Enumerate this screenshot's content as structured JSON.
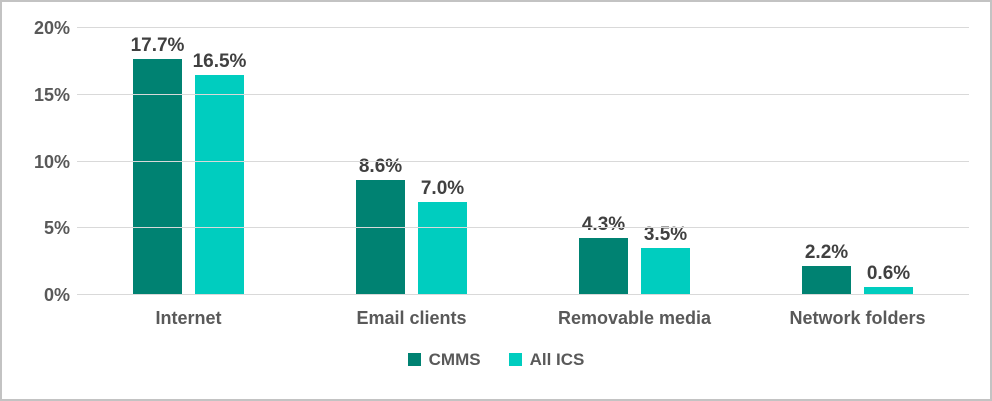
{
  "colors": {
    "cmms": "#008272",
    "all_ics": "#00cdbf",
    "gridline": "#d9d9d9",
    "axis_text": "#595959",
    "data_label_text": "#404040",
    "frame_border": "#c3c3c3"
  },
  "legend": {
    "position": "bottom",
    "items": [
      {
        "label": "CMMS",
        "color": "#008272"
      },
      {
        "label": "All ICS",
        "color": "#00cdbf"
      }
    ]
  },
  "chart_data": {
    "type": "bar",
    "title": "",
    "xlabel": "",
    "ylabel": "",
    "categories": [
      "Internet",
      "Email clients",
      "Removable media",
      "Network folders"
    ],
    "series": [
      {
        "name": "CMMS",
        "color": "#008272",
        "values": [
          17.7,
          8.6,
          4.3,
          2.2
        ],
        "labels": [
          "17.7%",
          "8.6%",
          "4.3%",
          "2.2%"
        ]
      },
      {
        "name": "All ICS",
        "color": "#00cdbf",
        "values": [
          16.5,
          7.0,
          3.5,
          0.6
        ],
        "labels": [
          "16.5%",
          "7.0%",
          "3.5%",
          "0.6%"
        ]
      }
    ],
    "y_ticks": [
      "0%",
      "5%",
      "10%",
      "15%",
      "20%"
    ],
    "ylim": [
      0,
      20
    ],
    "grid": true,
    "legend_position": "bottom"
  }
}
